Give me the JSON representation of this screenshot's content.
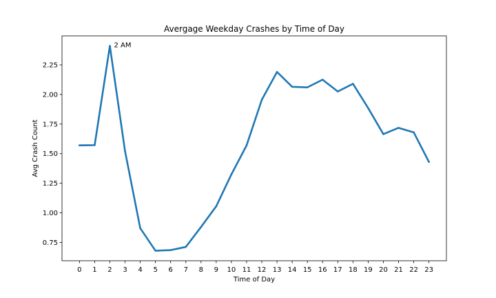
{
  "chart_data": {
    "type": "line",
    "title": "Avergage Weekday Crashes by Time of Day",
    "xlabel": "Time of Day",
    "ylabel": "Avg Crash Count",
    "x": [
      0,
      1,
      2,
      3,
      4,
      5,
      6,
      7,
      8,
      9,
      10,
      11,
      12,
      13,
      14,
      15,
      16,
      17,
      18,
      19,
      20,
      21,
      22,
      23
    ],
    "x_tick_labels": [
      "0",
      "1",
      "2",
      "3",
      "4",
      "5",
      "6",
      "7",
      "8",
      "9",
      "10",
      "11",
      "12",
      "13",
      "14",
      "15",
      "16",
      "17",
      "18",
      "19",
      "20",
      "21",
      "22",
      "23"
    ],
    "series": [
      {
        "values": [
          1.57,
          1.572,
          2.41,
          1.52,
          0.87,
          0.68,
          0.685,
          0.712,
          0.88,
          1.055,
          1.325,
          1.57,
          1.955,
          2.19,
          2.065,
          2.06,
          2.125,
          2.025,
          2.09,
          1.885,
          1.665,
          1.718,
          1.68,
          1.43
        ],
        "color": "#1f77b4"
      }
    ],
    "y_ticks": [
      0.75,
      1.0,
      1.25,
      1.5,
      1.75,
      2.0,
      2.25
    ],
    "y_tick_labels": [
      "0.75",
      "1.00",
      "1.25",
      "1.50",
      "1.75",
      "2.00",
      "2.25"
    ],
    "xlim": [
      -1.15,
      24.15
    ],
    "ylim": [
      0.595,
      2.495
    ],
    "annotations": [
      {
        "text": "2 AM",
        "x": 2,
        "y": 2.41
      }
    ],
    "grid": false,
    "legend": "none"
  }
}
